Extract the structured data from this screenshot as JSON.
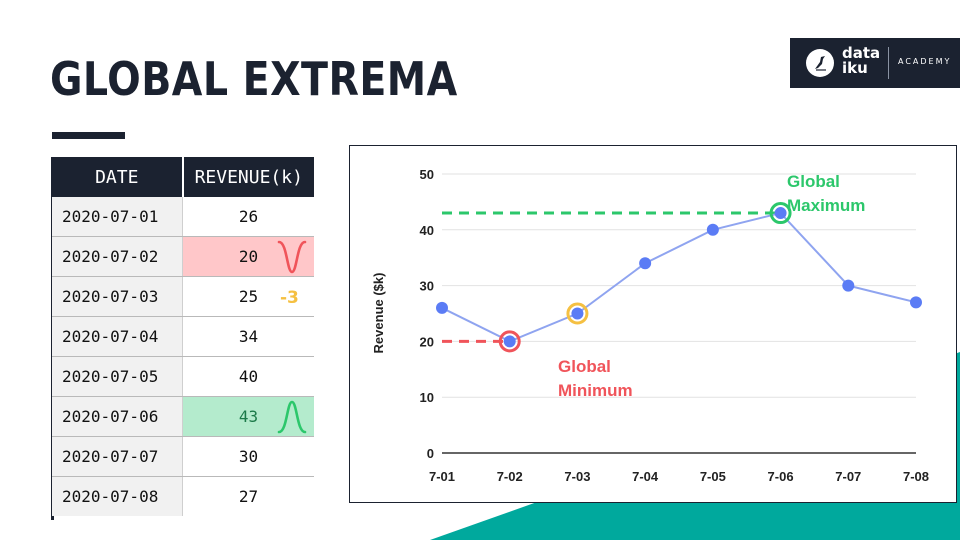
{
  "slide": {
    "title": "GLOBAL EXTREMA"
  },
  "logo": {
    "line1": "data",
    "line2": "iku",
    "tagline": "ACADEMY"
  },
  "table": {
    "headers": [
      "DATE",
      "REVENUE(k)"
    ],
    "rows": [
      {
        "date": "2020-07-01",
        "revenue": "26"
      },
      {
        "date": "2020-07-02",
        "revenue": "20"
      },
      {
        "date": "2020-07-03",
        "revenue": "25"
      },
      {
        "date": "2020-07-04",
        "revenue": "34"
      },
      {
        "date": "2020-07-05",
        "revenue": "40"
      },
      {
        "date": "2020-07-06",
        "revenue": "43"
      },
      {
        "date": "2020-07-07",
        "revenue": "30"
      },
      {
        "date": "2020-07-08",
        "revenue": "27"
      }
    ],
    "difference_note": "-3"
  },
  "colors": {
    "navy": "#1b2230",
    "teal": "#00a99d",
    "line": "#8fa4f0",
    "point": "#5b7cf5",
    "min": "#f0545a",
    "max": "#2cc76b",
    "highlight": "#f5c042"
  },
  "chart_data": {
    "type": "line",
    "title": "",
    "xlabel": "",
    "ylabel": "Revenue ($k)",
    "categories": [
      "7-01",
      "7-02",
      "7-03",
      "7-04",
      "7-05",
      "7-06",
      "7-07",
      "7-08"
    ],
    "values": [
      26,
      20,
      25,
      34,
      40,
      43,
      30,
      27
    ],
    "ylim": [
      0,
      50
    ],
    "yticks": [
      0,
      10,
      20,
      30,
      40,
      50
    ],
    "grid": true,
    "annotations": {
      "max_label_1": "Global",
      "max_label_2": "Maximum",
      "min_label_1": "Global",
      "min_label_2": "Minimum"
    }
  }
}
